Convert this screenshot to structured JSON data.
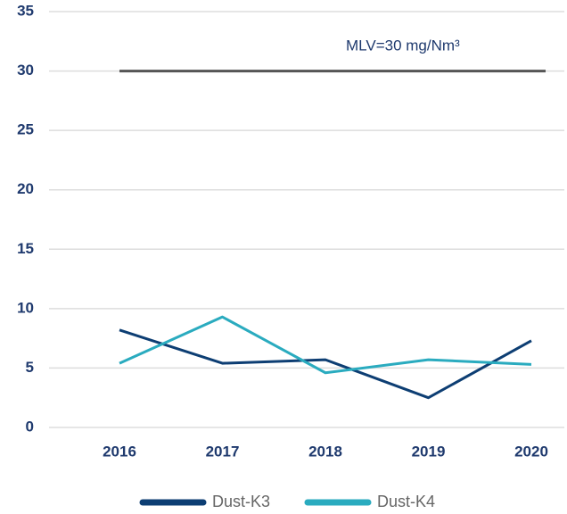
{
  "chart_data": {
    "type": "line",
    "categories": [
      "2016",
      "2017",
      "2018",
      "2019",
      "2020"
    ],
    "series": [
      {
        "name": "Dust-K3",
        "color": "#0d3e73",
        "values": [
          8.2,
          5.4,
          5.7,
          2.5,
          7.3
        ]
      },
      {
        "name": "Dust-K4",
        "color": "#2aabbf",
        "values": [
          5.4,
          9.3,
          4.6,
          5.7,
          5.3
        ]
      }
    ],
    "reference_line": {
      "value": 30,
      "label": "MLV=30 mg/Nm³",
      "color": "#555555"
    },
    "ylim": [
      0,
      35
    ],
    "yticks": [
      0,
      5,
      10,
      15,
      20,
      25,
      30,
      35
    ],
    "grid": true,
    "legend": "bottom"
  }
}
